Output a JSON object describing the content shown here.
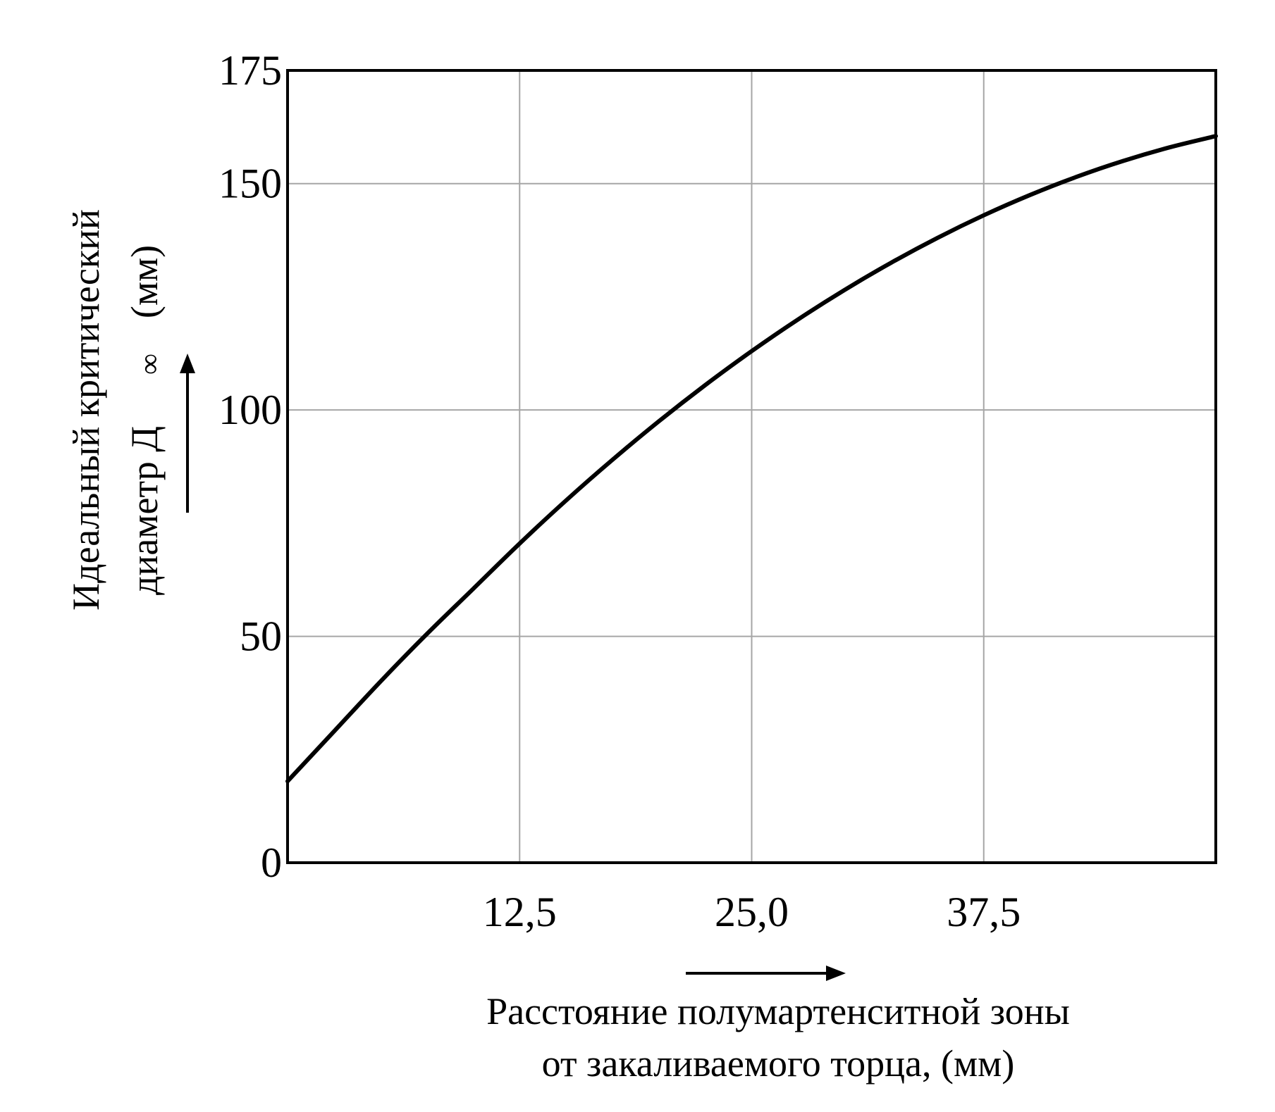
{
  "chart_data": {
    "type": "line",
    "title": "",
    "xlabel_lines": [
      "Расстояние полумартенситной зоны",
      "от закаливаемого торца, (мм)"
    ],
    "ylabel_lines": [
      "Идеальный критический",
      "диаметр Д",
      "(мм)"
    ],
    "ylabel_symbol": "∞",
    "xlim": [
      0,
      50
    ],
    "ylim": [
      0,
      175
    ],
    "x_ticks": [
      12.5,
      25.0,
      37.5
    ],
    "x_tick_labels": [
      "12,5",
      "25,0",
      "37,5"
    ],
    "y_ticks": [
      0,
      50,
      100,
      150,
      175
    ],
    "y_tick_labels": [
      "0",
      "50",
      "100",
      "150",
      "175"
    ],
    "grid": true,
    "series": [
      {
        "x": [
          0,
          2.5,
          5,
          7.5,
          10,
          12.5,
          15,
          17.5,
          20,
          22.5,
          25,
          27.5,
          30,
          32.5,
          35,
          37.5,
          40,
          42.5,
          45,
          47.5,
          50
        ],
        "y": [
          18,
          29,
          40,
          50.5,
          60.5,
          70.5,
          80,
          89,
          97.5,
          105.5,
          113,
          120,
          126.5,
          132.5,
          138,
          143,
          147.5,
          151.5,
          155,
          158,
          160.5
        ]
      }
    ]
  }
}
